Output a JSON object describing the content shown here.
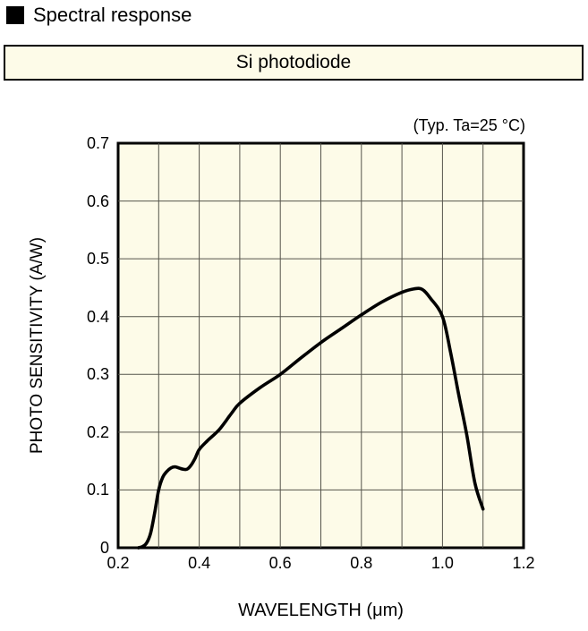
{
  "header": {
    "section_title": "Spectral response",
    "part_name": "Si photodiode"
  },
  "chart": {
    "condition_note": "(Typ. Ta=25 °C)",
    "y_axis_label": "PHOTO SENSITIVITY (A/W)",
    "x_axis_label": "WAVELENGTH (μm)",
    "y_ticks": [
      "0.7",
      "0.6",
      "0.5",
      "0.4",
      "0.3",
      "0.2",
      "0.1",
      "0"
    ],
    "x_ticks": [
      "0.2",
      "0.4",
      "0.6",
      "0.8",
      "1.0",
      "1.2"
    ]
  },
  "chart_data": {
    "type": "line",
    "title": "Si photodiode spectral response",
    "annotation": "(Typ. Ta=25 °C)",
    "xlabel": "WAVELENGTH (μm)",
    "ylabel": "PHOTO SENSITIVITY (A/W)",
    "xlim": [
      0.2,
      1.2
    ],
    "ylim": [
      0,
      0.7
    ],
    "grid": true,
    "grid_step_x": 0.1,
    "grid_step_y": 0.1,
    "legend_position": "none",
    "series": [
      {
        "name": "Si photodiode",
        "x": [
          0.25,
          0.26,
          0.27,
          0.28,
          0.29,
          0.3,
          0.31,
          0.32,
          0.33,
          0.34,
          0.35,
          0.36,
          0.37,
          0.38,
          0.39,
          0.4,
          0.42,
          0.45,
          0.48,
          0.5,
          0.55,
          0.6,
          0.65,
          0.7,
          0.75,
          0.8,
          0.85,
          0.9,
          0.93,
          0.95,
          0.97,
          1.0,
          1.02,
          1.04,
          1.06,
          1.08,
          1.1
        ],
        "y": [
          0.0,
          0.002,
          0.008,
          0.025,
          0.06,
          0.1,
          0.122,
          0.132,
          0.138,
          0.14,
          0.138,
          0.136,
          0.136,
          0.143,
          0.155,
          0.17,
          0.185,
          0.205,
          0.233,
          0.25,
          0.277,
          0.3,
          0.328,
          0.355,
          0.379,
          0.403,
          0.425,
          0.442,
          0.448,
          0.447,
          0.432,
          0.4,
          0.338,
          0.265,
          0.195,
          0.112,
          0.067
        ]
      }
    ]
  },
  "colors": {
    "plot_background": "#FDFBE8",
    "grid_line": "#55544B",
    "plot_border": "#000000",
    "curve": "#000000",
    "text": "#000000",
    "page_background": "#FFFFFF",
    "bullet": "#000000"
  }
}
